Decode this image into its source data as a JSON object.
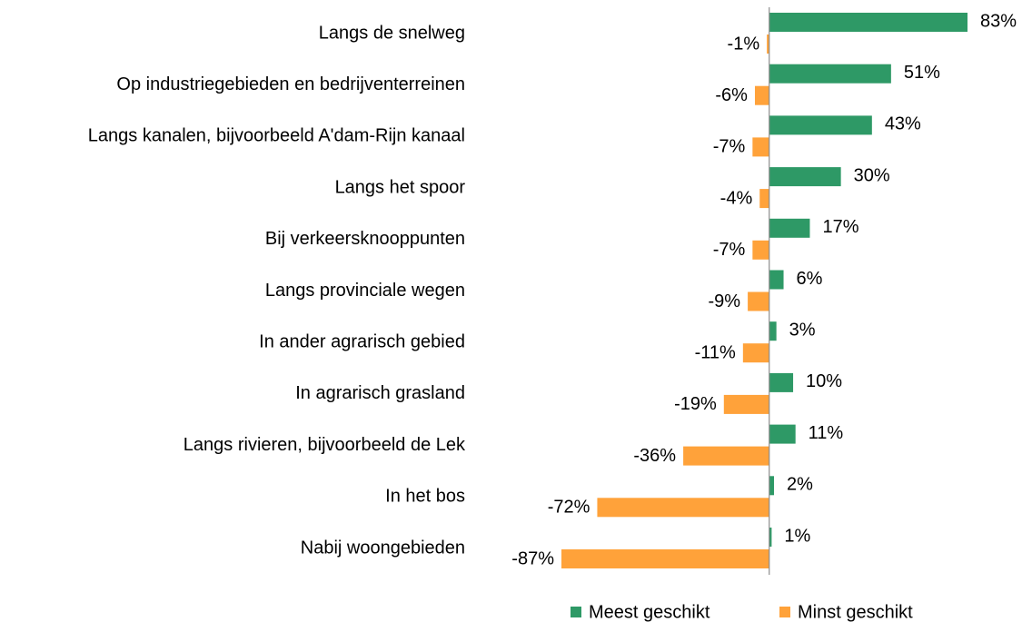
{
  "chart_data": {
    "type": "bar",
    "orientation": "horizontal",
    "categories": [
      "Langs de snelweg",
      "Op industriegebieden en bedrijventerreinen",
      "Langs kanalen, bijvoorbeeld A'dam-Rijn kanaal",
      "Langs het spoor",
      "Bij verkeersknooppunten",
      "Langs provinciale wegen",
      "In ander agrarisch gebied",
      "In agrarisch grasland",
      "Langs rivieren, bijvoorbeeld de Lek",
      "In het bos",
      "Nabij woongebieden"
    ],
    "series": [
      {
        "name": "Meest geschikt",
        "color": "#2e9966",
        "values": [
          83,
          51,
          43,
          30,
          17,
          6,
          3,
          10,
          11,
          2,
          1
        ],
        "value_labels": [
          "83%",
          "51%",
          "43%",
          "30%",
          "17%",
          "6%",
          "3%",
          "10%",
          "11%",
          "2%",
          "1%"
        ]
      },
      {
        "name": "Minst geschikt",
        "color": "#ffa23a",
        "values": [
          -1,
          -6,
          -7,
          -4,
          -7,
          -9,
          -11,
          -19,
          -36,
          -72,
          -87
        ],
        "value_labels": [
          "-1%",
          "-6%",
          "-7%",
          "-4%",
          "-7%",
          "-9%",
          "-11%",
          "-19%",
          "-36%",
          "-72%",
          "-87%"
        ]
      }
    ],
    "legend": "bottom"
  }
}
